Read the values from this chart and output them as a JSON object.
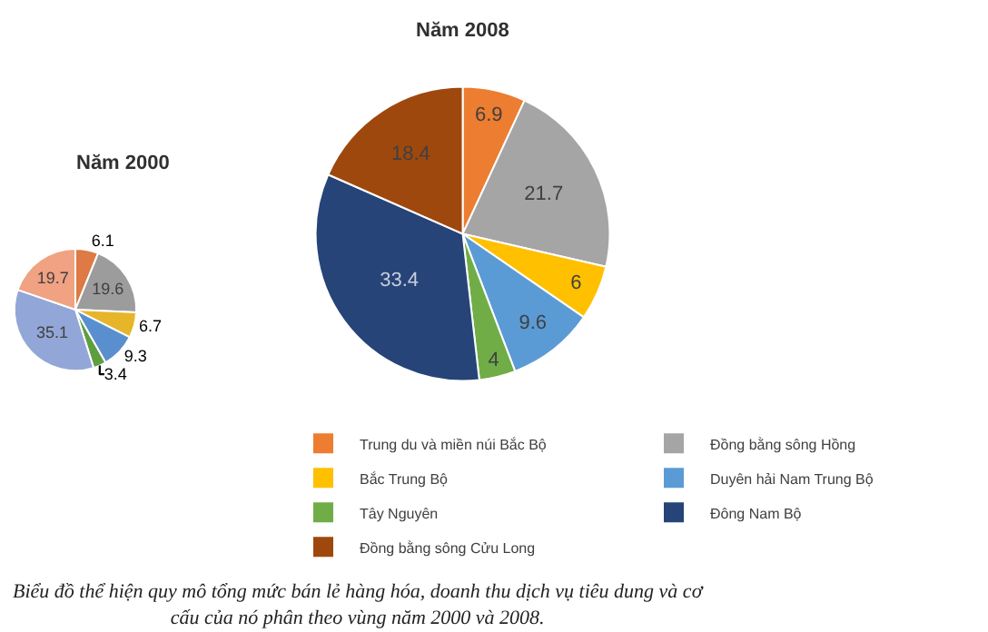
{
  "chart_data": [
    {
      "type": "pie",
      "title": "Năm 2000",
      "categories": [
        null,
        null,
        null,
        null,
        null,
        null,
        null
      ],
      "values": [
        6.1,
        19.6,
        6.7,
        9.3,
        3.4,
        35.1,
        19.7
      ],
      "colors": [
        "#dd7a45",
        "#9c9c9c",
        "#e6b52a",
        "#5a8fcf",
        "#5e9e3e",
        "#93a6d8",
        "#f0a283"
      ],
      "data_labels": true,
      "annotations": [
        "Biểu đồ thể hiện quy mô tổng mức bán lẻ hàng hóa, doanh thu dịch vụ tiêu dung và cơ cấu của nó phân theo vùng năm 2000 và 2008."
      ]
    },
    {
      "type": "pie",
      "title": "Năm 2008",
      "categories": [
        "Trung du và miền núi Bắc Bộ",
        "Đồng bằng sông Hồng",
        "Bắc Trung Bộ",
        "Duyên hải Nam Trung Bộ",
        "Tây Nguyên",
        "Đông Nam Bộ",
        "Đồng bằng sông Cửu Long"
      ],
      "values": [
        6.9,
        21.7,
        6,
        9.6,
        4,
        33.4,
        18.4
      ],
      "colors": [
        "#ed7d31",
        "#a5a5a5",
        "#ffc000",
        "#5b9bd5",
        "#70ad47",
        "#264478",
        "#9e480e"
      ],
      "data_labels": true,
      "legend": "bottom right"
    }
  ]
}
